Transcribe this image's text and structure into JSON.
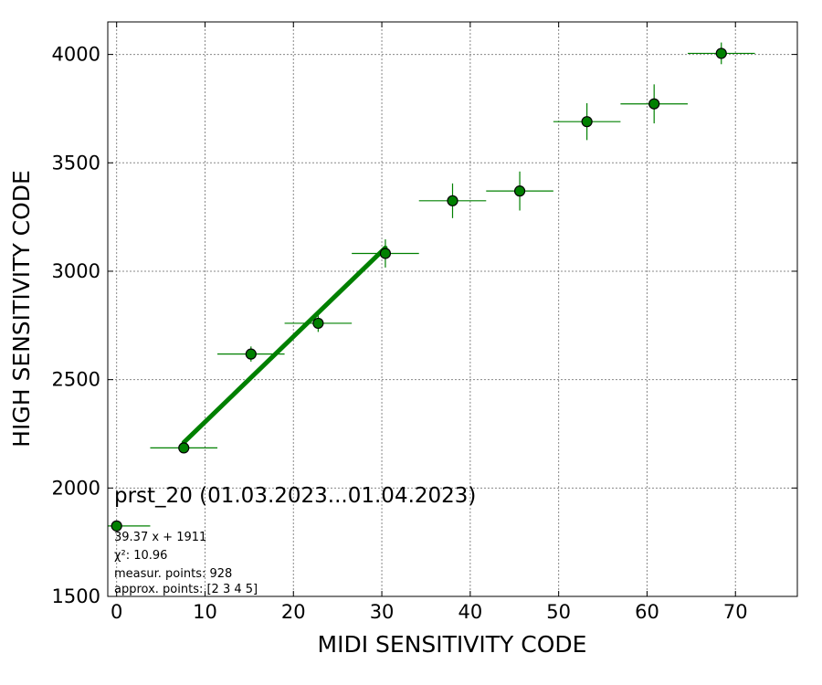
{
  "chart_data": {
    "type": "scatter",
    "title": "prst_20 (01.03.2023...01.04.2023)",
    "xlabel": "MIDI SENSITIVITY CODE",
    "ylabel": "HIGH SENSITIVITY CODE",
    "xlim": [
      -1,
      77
    ],
    "ylim": [
      1500,
      4150
    ],
    "xticks": [
      0,
      10,
      20,
      30,
      40,
      50,
      60,
      70
    ],
    "yticks": [
      1500,
      2000,
      2500,
      3000,
      3500,
      4000
    ],
    "grid": true,
    "series": [
      {
        "kind": "errorbar-points",
        "color": "#008000",
        "edge_color": "#000000",
        "points": [
          {
            "x": 0.0,
            "y": 1825,
            "xerr": 3.8,
            "yerr": 0
          },
          {
            "x": 7.6,
            "y": 2185,
            "xerr": 3.8,
            "yerr": 12
          },
          {
            "x": 15.2,
            "y": 2618,
            "xerr": 3.8,
            "yerr": 35
          },
          {
            "x": 22.8,
            "y": 2760,
            "xerr": 3.8,
            "yerr": 40
          },
          {
            "x": 30.4,
            "y": 3082,
            "xerr": 3.8,
            "yerr": 65
          },
          {
            "x": 38.0,
            "y": 3325,
            "xerr": 3.8,
            "yerr": 80
          },
          {
            "x": 45.6,
            "y": 3370,
            "xerr": 3.8,
            "yerr": 90
          },
          {
            "x": 53.2,
            "y": 3690,
            "xerr": 3.8,
            "yerr": 85
          },
          {
            "x": 60.8,
            "y": 3772,
            "xerr": 3.8,
            "yerr": 90
          },
          {
            "x": 68.4,
            "y": 4005,
            "xerr": 3.8,
            "yerr": 50
          }
        ]
      },
      {
        "kind": "fit-line",
        "color": "#008000",
        "x": [
          7.6,
          30.4
        ],
        "y": [
          2210,
          3108
        ]
      }
    ],
    "annotations": [
      "39.37 x + 1911",
      "χ²: 10.96",
      "measur. points: 928",
      "approx. points: [2 3 4 5]"
    ]
  }
}
